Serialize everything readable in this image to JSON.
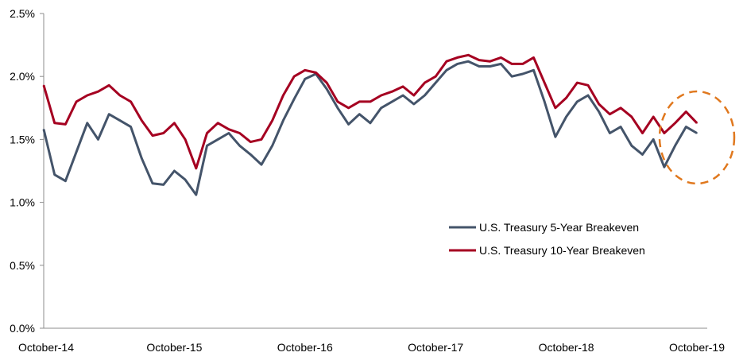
{
  "chart_data": {
    "type": "line",
    "title": "",
    "xlabel": "",
    "ylabel": "",
    "ylim": [
      0,
      2.5
    ],
    "xlim": [
      "2014-10",
      "2019-10"
    ],
    "grid": false,
    "legend_position": "lower-right (inside plot)",
    "y_ticks": [
      "0.0%",
      "0.5%",
      "1.0%",
      "1.5%",
      "2.0%",
      "2.5%"
    ],
    "y_tick_values": [
      0,
      0.5,
      1.0,
      1.5,
      2.0,
      2.5
    ],
    "x_ticks": [
      "October-14",
      "October-15",
      "October-16",
      "October-17",
      "October-18",
      "October-19"
    ],
    "x_tick_values": [
      "2014-10",
      "2015-10",
      "2016-10",
      "2017-10",
      "2018-10",
      "2019-10"
    ],
    "x": [
      "2014-10",
      "2014-11",
      "2014-12",
      "2015-01",
      "2015-02",
      "2015-03",
      "2015-04",
      "2015-05",
      "2015-06",
      "2015-07",
      "2015-08",
      "2015-09",
      "2015-10",
      "2015-11",
      "2015-12",
      "2016-01",
      "2016-02",
      "2016-03",
      "2016-04",
      "2016-05",
      "2016-06",
      "2016-07",
      "2016-08",
      "2016-09",
      "2016-10",
      "2016-11",
      "2016-12",
      "2017-01",
      "2017-02",
      "2017-03",
      "2017-04",
      "2017-05",
      "2017-06",
      "2017-07",
      "2017-08",
      "2017-09",
      "2017-10",
      "2017-11",
      "2017-12",
      "2018-01",
      "2018-02",
      "2018-03",
      "2018-04",
      "2018-05",
      "2018-06",
      "2018-07",
      "2018-08",
      "2018-09",
      "2018-10",
      "2018-11",
      "2018-12",
      "2019-01",
      "2019-02",
      "2019-03",
      "2019-04",
      "2019-05",
      "2019-06",
      "2019-07",
      "2019-08",
      "2019-09",
      "2019-10"
    ],
    "series": [
      {
        "name": "U.S. Treasury 5-Year Breakeven",
        "color": "#44546A",
        "values": [
          1.58,
          1.22,
          1.17,
          1.4,
          1.63,
          1.5,
          1.7,
          1.65,
          1.6,
          1.35,
          1.15,
          1.14,
          1.25,
          1.18,
          1.06,
          1.45,
          1.5,
          1.55,
          1.45,
          1.38,
          1.3,
          1.45,
          1.65,
          1.82,
          1.98,
          2.02,
          1.9,
          1.75,
          1.62,
          1.7,
          1.63,
          1.75,
          1.8,
          1.85,
          1.78,
          1.85,
          1.95,
          2.05,
          2.1,
          2.12,
          2.08,
          2.08,
          2.1,
          2.0,
          2.02,
          2.05,
          1.8,
          1.52,
          1.68,
          1.8,
          1.85,
          1.72,
          1.55,
          1.6,
          1.45,
          1.38,
          1.5,
          1.28,
          1.45,
          1.6,
          1.55
        ]
      },
      {
        "name": "U.S. Treasury 10-Year Breakeven",
        "color": "#A50021",
        "values": [
          1.93,
          1.63,
          1.62,
          1.8,
          1.85,
          1.88,
          1.93,
          1.85,
          1.8,
          1.65,
          1.53,
          1.55,
          1.63,
          1.5,
          1.27,
          1.55,
          1.63,
          1.58,
          1.55,
          1.48,
          1.5,
          1.65,
          1.85,
          2.0,
          2.05,
          2.03,
          1.95,
          1.8,
          1.75,
          1.8,
          1.8,
          1.85,
          1.88,
          1.92,
          1.85,
          1.95,
          2.0,
          2.12,
          2.15,
          2.17,
          2.13,
          2.12,
          2.15,
          2.1,
          2.1,
          2.15,
          1.95,
          1.75,
          1.83,
          1.95,
          1.93,
          1.78,
          1.7,
          1.75,
          1.68,
          1.55,
          1.68,
          1.55,
          1.63,
          1.72,
          1.63
        ]
      }
    ]
  }
}
